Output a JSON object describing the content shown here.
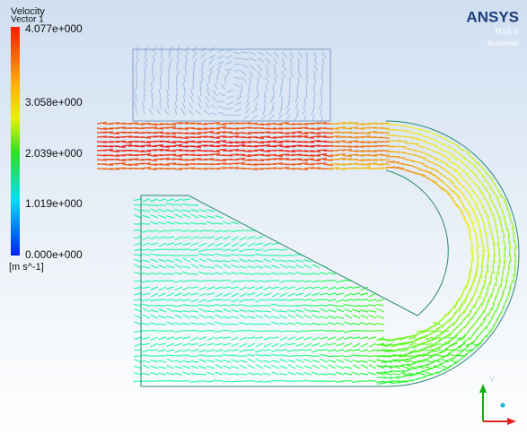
{
  "legend": {
    "title": "Velocity",
    "subtitle": "Vector 1",
    "ticks": [
      "4.077e+000",
      "3.058e+000",
      "2.039e+000",
      "1.019e+000",
      "0.000e+000"
    ],
    "unit": "[m s^-1]"
  },
  "logo": {
    "name": "ANSYS",
    "version": "R16.0",
    "edition": "Academic"
  },
  "triad": {
    "y_label": "Y"
  }
}
